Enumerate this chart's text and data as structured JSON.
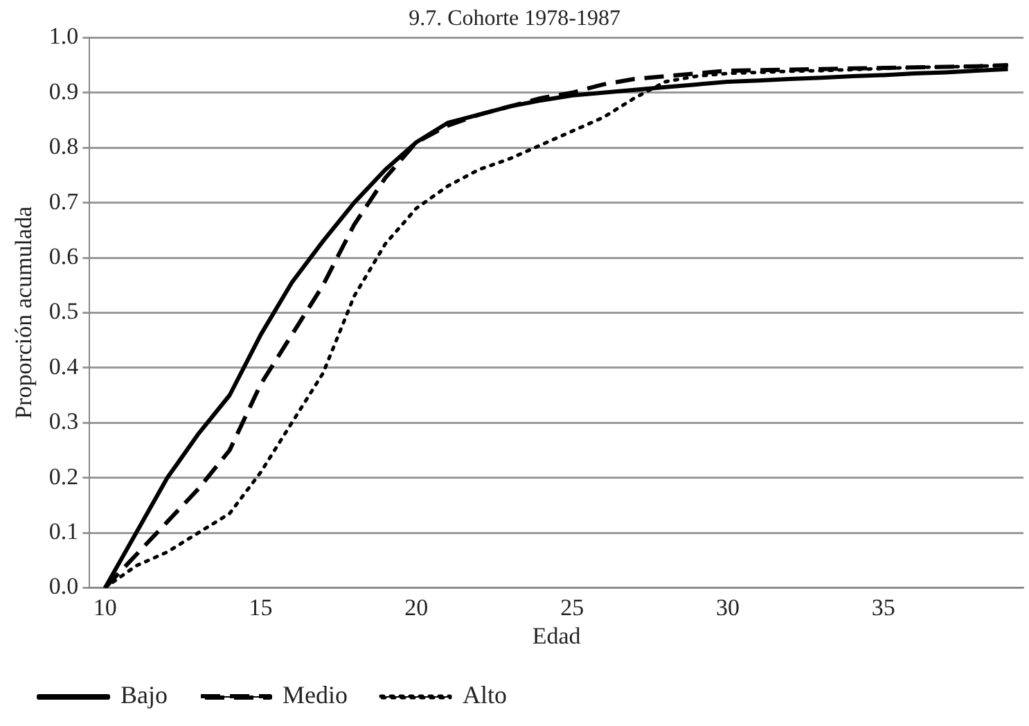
{
  "chart_data": {
    "type": "line",
    "title": "9.7. Cohorte 1978-1987",
    "xlabel": "Edad",
    "ylabel": "Proporción acumulada",
    "categories": [
      "10",
      null,
      null,
      null,
      null,
      "15",
      null,
      null,
      null,
      null,
      "20",
      null,
      null,
      null,
      null,
      "25",
      null,
      null,
      null,
      null,
      "30",
      null,
      null,
      null,
      null,
      "35",
      null,
      null,
      null,
      null
    ],
    "series": [
      {
        "name": "Bajo",
        "color": "#000000",
        "line_style": "solid",
        "values": [
          0,
          0.1,
          0.2,
          0.28,
          0.35,
          0.46,
          0.555,
          0.63,
          0.7,
          0.76,
          0.81,
          0.845,
          0.86,
          0.875,
          0.886,
          0.895,
          0.9,
          0.905,
          0.91,
          0.915,
          0.92,
          0.922,
          0.925,
          0.927,
          0.93,
          0.932,
          0.935,
          0.937,
          0.94,
          0.943
        ]
      },
      {
        "name": "Medio",
        "color": "#000000",
        "line_style": "dashed",
        "values": [
          0,
          0.06,
          0.12,
          0.18,
          0.25,
          0.37,
          0.46,
          0.55,
          0.66,
          0.745,
          0.81,
          0.84,
          0.86,
          0.875,
          0.89,
          0.9,
          0.915,
          0.925,
          0.93,
          0.935,
          0.94,
          0.941,
          0.942,
          0.943,
          0.944,
          0.945,
          0.946,
          0.947,
          0.948,
          0.95
        ]
      },
      {
        "name": "Alto",
        "color": "#000000",
        "line_style": "dotted",
        "values": [
          0,
          0.04,
          0.065,
          0.1,
          0.135,
          0.21,
          0.3,
          0.39,
          0.53,
          0.625,
          0.69,
          0.73,
          0.76,
          0.78,
          0.805,
          0.83,
          0.855,
          0.89,
          0.92,
          0.93,
          0.935,
          0.937,
          0.939,
          0.94,
          0.942,
          0.944,
          0.946,
          0.947,
          0.948,
          0.95
        ]
      }
    ],
    "ylim": [
      0,
      1
    ],
    "yticks": [
      {
        "value": 0,
        "label": "0.0"
      },
      {
        "value": 0.1,
        "label": "0.1"
      },
      {
        "value": 0.2,
        "label": "0.2"
      },
      {
        "value": 0.3,
        "label": "0.3"
      },
      {
        "value": 0.4,
        "label": "0.4"
      },
      {
        "value": 0.5,
        "label": "0.5"
      },
      {
        "value": 0.6,
        "label": "0.6"
      },
      {
        "value": 0.7,
        "label": "0.7"
      },
      {
        "value": 0.8,
        "label": "0.8"
      },
      {
        "value": 0.9,
        "label": "0.9"
      },
      {
        "value": 1,
        "label": "1.0"
      }
    ],
    "grid": "y",
    "legend": "bottom",
    "marker": "none"
  }
}
